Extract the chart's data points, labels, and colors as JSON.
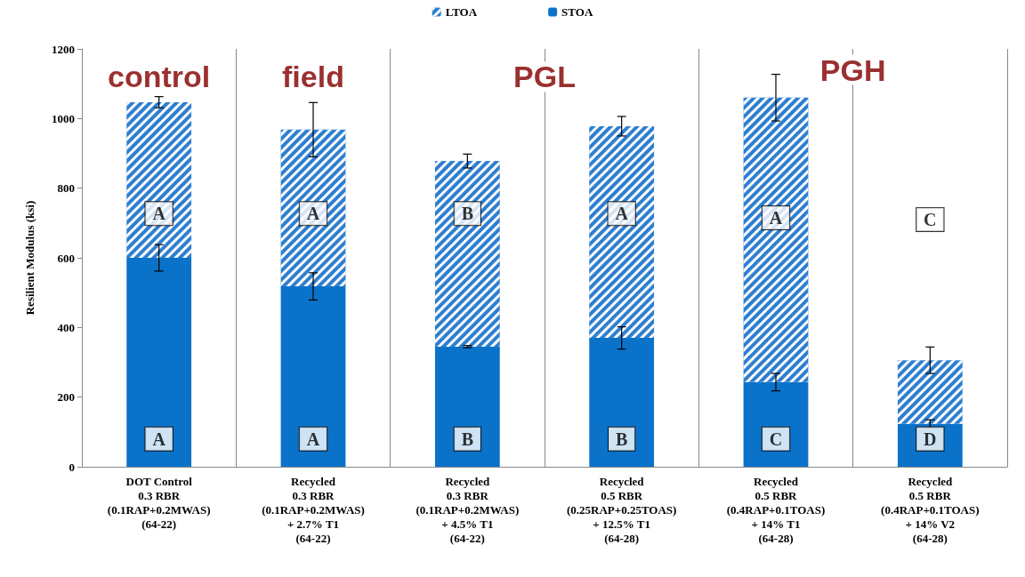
{
  "chart_data": {
    "type": "bar",
    "stacked": true,
    "ylabel": "Resilient Modulus (ksi)",
    "categories": [
      "DOT Control\n0.3 RBR\n(0.1RAP+0.2MWAS)\n(64-22)",
      "Recycled\n0.3 RBR\n(0.1RAP+0.2MWAS)\n+ 2.7% T1\n(64-22)",
      "Recycled\n0.3 RBR\n(0.1RAP+0.2MWAS)\n+ 4.5% T1\n(64-22)",
      "Recycled\n0.5 RBR\n(0.25RAP+0.25TOAS)\n+ 12.5% T1\n(64-28)",
      "Recycled\n0.5 RBR\n(0.4RAP+0.1TOAS)\n+ 14% T1\n(64-28)",
      "Recycled\n0.5 RBR\n(0.4RAP+0.1TOAS)\n+ 14% V2\n(64-28)"
    ],
    "series": [
      {
        "name": "STOA",
        "color": "#0b72c9",
        "values": [
          600,
          518,
          345,
          370,
          243,
          123
        ],
        "errors": [
          38,
          39,
          3,
          32,
          25,
          12
        ]
      },
      {
        "name": "LTOA",
        "color": "#2e7fd0",
        "values": [
          447,
          450,
          533,
          608,
          817,
          183
        ],
        "errors": [
          16,
          78,
          20,
          28,
          67,
          38
        ]
      }
    ],
    "ylim": [
      0,
      1200
    ],
    "yticks": [
      0,
      200,
      400,
      600,
      800,
      1000,
      1200
    ],
    "grid": "x",
    "legend": "top",
    "annotations": [
      "control",
      "field",
      "PGL",
      "PGH",
      {
        "text": "A",
        "x": "DOT Control\n0.3 RBR\n(0.1RAP+0.2MWAS)\n(64-22)",
        "y": 80
      },
      {
        "text": "A",
        "x": "Recycled\n0.3 RBR\n(0.1RAP+0.2MWAS)\n+ 2.7% T1\n(64-22)",
        "y": 80
      },
      {
        "text": "B",
        "x": "Recycled\n0.3 RBR\n(0.1RAP+0.2MWAS)\n+ 4.5% T1\n(64-22)",
        "y": 80
      },
      {
        "text": "B",
        "x": "Recycled\n0.5 RBR\n(0.25RAP+0.25TOAS)\n+ 12.5% T1\n(64-28)",
        "y": 80
      },
      {
        "text": "C",
        "x": "Recycled\n0.5 RBR\n(0.4RAP+0.1TOAS)\n+ 14% T1\n(64-28)",
        "y": 80
      },
      {
        "text": "D",
        "x": "Recycled\n0.5 RBR\n(0.4RAP+0.1TOAS)\n+ 14% V2\n(64-28)",
        "y": 80
      },
      {
        "text": "A",
        "x": "DOT Control\n0.3 RBR\n(0.1RAP+0.2MWAS)\n(64-22)",
        "y": 727
      },
      {
        "text": "A",
        "x": "Recycled\n0.3 RBR\n(0.1RAP+0.2MWAS)\n+ 2.7% T1\n(64-22)",
        "y": 727
      },
      {
        "text": "B",
        "x": "Recycled\n0.3 RBR\n(0.1RAP+0.2MWAS)\n+ 4.5% T1\n(64-22)",
        "y": 727
      },
      {
        "text": "A",
        "x": "Recycled\n0.5 RBR\n(0.25RAP+0.25TOAS)\n+ 12.5% T1\n(64-28)",
        "y": 727
      },
      {
        "text": "A",
        "x": "Recycled\n0.5 RBR\n(0.4RAP+0.1TOAS)\n+ 14% T1\n(64-28)",
        "y": 715
      },
      {
        "text": "C",
        "x": "Recycled\n0.5 RBR\n(0.4RAP+0.1TOAS)\n+ 14% V2\n(64-28)",
        "y": 710
      }
    ]
  }
}
